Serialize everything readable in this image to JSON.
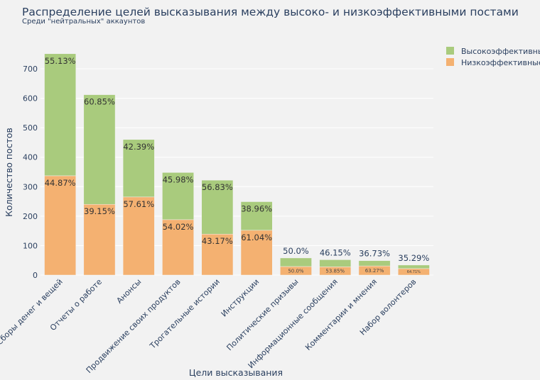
{
  "chart_data": {
    "type": "bar",
    "stacked": true,
    "title": "Распределение целей высказывания между высоко- и низкоэффективными постами",
    "subtitle": "Среди \"нейтральных\" аккаунтов",
    "xlabel": "Цели высказывания",
    "ylabel": "Количество постов",
    "ylim": [
      0,
      770
    ],
    "yticks": [
      0,
      100,
      200,
      300,
      400,
      500,
      600,
      700
    ],
    "grid": true,
    "legend_position": "top-right",
    "categories": [
      "Сборы денег и вещей",
      "Отчеты о работе",
      "Анонсы",
      "Продвижение своих продуктов",
      "Трогательные истории",
      "Инструкции",
      "Политические призывы",
      "Информационные сообщения",
      "Комментарии и мнения",
      "Набор волонтеров"
    ],
    "series": [
      {
        "name": "Низкоэффективные",
        "color": "#f4b171",
        "values": [
          337,
          240,
          265,
          188,
          139,
          152,
          29,
          28,
          31,
          22
        ],
        "labels": [
          "44.87%",
          "39.15%",
          "57.61%",
          "54.02%",
          "43.17%",
          "61.04%",
          "50.0%",
          "53.85%",
          "63.27%",
          "64.71%"
        ]
      },
      {
        "name": "Высокоэффективные",
        "color": "#a9cb7d",
        "values": [
          414,
          372,
          195,
          160,
          183,
          97,
          29,
          24,
          18,
          12
        ],
        "labels": [
          "55.13%",
          "60.85%",
          "42.39%",
          "45.98%",
          "56.83%",
          "38.96%",
          "50.0%",
          "46.15%",
          "36.73%",
          "35.29%"
        ]
      }
    ]
  }
}
